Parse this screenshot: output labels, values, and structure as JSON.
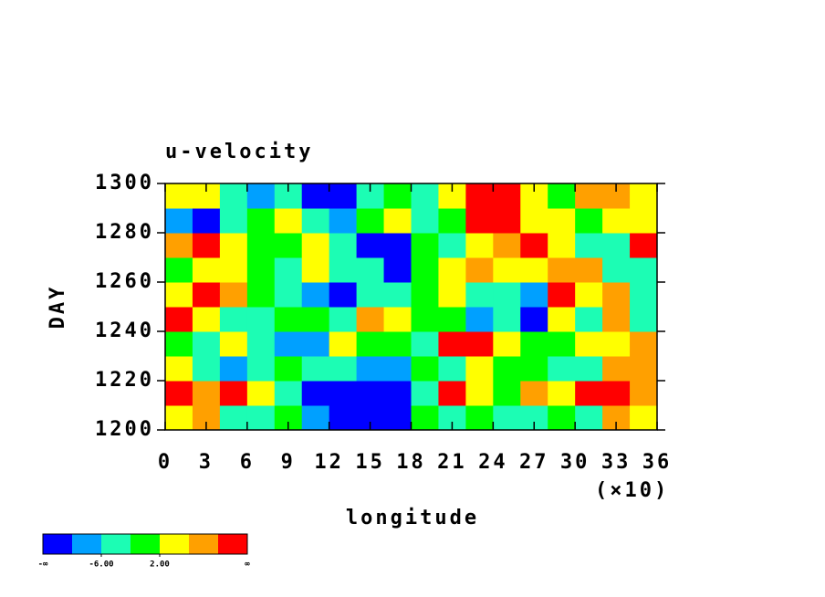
{
  "chart_data": {
    "type": "contour",
    "title": "u-velocity",
    "xlabel": "longitude",
    "ylabel": "DAY",
    "x_scale_label": "(×10)",
    "xlim": [
      0,
      36
    ],
    "xticks": [
      0,
      3,
      6,
      9,
      12,
      15,
      18,
      21,
      24,
      27,
      30,
      33,
      36
    ],
    "ylim": [
      1200,
      1300
    ],
    "yticks": [
      1200,
      1220,
      1240,
      1260,
      1280,
      1300
    ],
    "levels": [
      -10,
      -6,
      -2,
      2,
      6,
      10
    ],
    "colors": [
      "#0000ff",
      "#00a0ff",
      "#1cfdb4",
      "#00ff00",
      "#ffff00",
      "#ffa000",
      "#ff0000"
    ],
    "colorbar_ticks": [
      {
        "value": -6,
        "label": "-6.00"
      },
      {
        "value": 2,
        "label": "2.00"
      }
    ],
    "colorbar_end_labels": [
      "-∞",
      "∞"
    ],
    "z": [
      [
        3,
        9,
        -3,
        -4,
        -1,
        -8,
        -12,
        -14,
        -11,
        0,
        -3,
        -2,
        -6,
        -4,
        0,
        -3,
        6,
        4
      ],
      [
        10,
        6,
        12,
        4,
        -6,
        -11,
        -12,
        -13,
        -14,
        -4,
        12,
        5,
        -1,
        6,
        3,
        11,
        13,
        8
      ],
      [
        2,
        -4,
        -8,
        -3,
        1,
        -5,
        -3,
        -10,
        -7,
        0,
        -5,
        3,
        -2,
        -1,
        -4,
        -6,
        8,
        9
      ],
      [
        -2,
        -6,
        4,
        -3,
        -9,
        -10,
        3,
        -1,
        -2,
        -3,
        11,
        12,
        4,
        0,
        -2,
        5,
        2,
        6
      ],
      [
        13,
        2,
        -4,
        -6,
        -2,
        0,
        -3,
        9,
        5,
        -2,
        0,
        -7,
        -5,
        -12,
        3,
        -3,
        8,
        -6
      ],
      [
        4,
        12,
        8,
        -2,
        -5,
        -10,
        -11,
        -4,
        -6,
        -1,
        3,
        -3,
        -6,
        -8,
        12,
        4,
        9,
        -5
      ],
      [
        -2,
        3,
        5,
        0,
        -4,
        2,
        -4,
        -6,
        -11,
        -2,
        4,
        8,
        3,
        5,
        9,
        6,
        -4,
        -3
      ],
      [
        6,
        10,
        3,
        -2,
        1,
        4,
        -3,
        -13,
        -12,
        0,
        -4,
        2,
        6,
        10,
        3,
        -5,
        -3,
        11
      ],
      [
        -8,
        -11,
        -6,
        -1,
        4,
        -4,
        -8,
        -2,
        3,
        -4,
        1,
        13,
        12,
        4,
        2,
        -2,
        3,
        5
      ],
      [
        4,
        3,
        -3,
        -8,
        -5,
        -12,
        -11,
        -4,
        0,
        -3,
        3,
        12,
        11,
        5,
        -2,
        6,
        8,
        4
      ]
    ]
  }
}
